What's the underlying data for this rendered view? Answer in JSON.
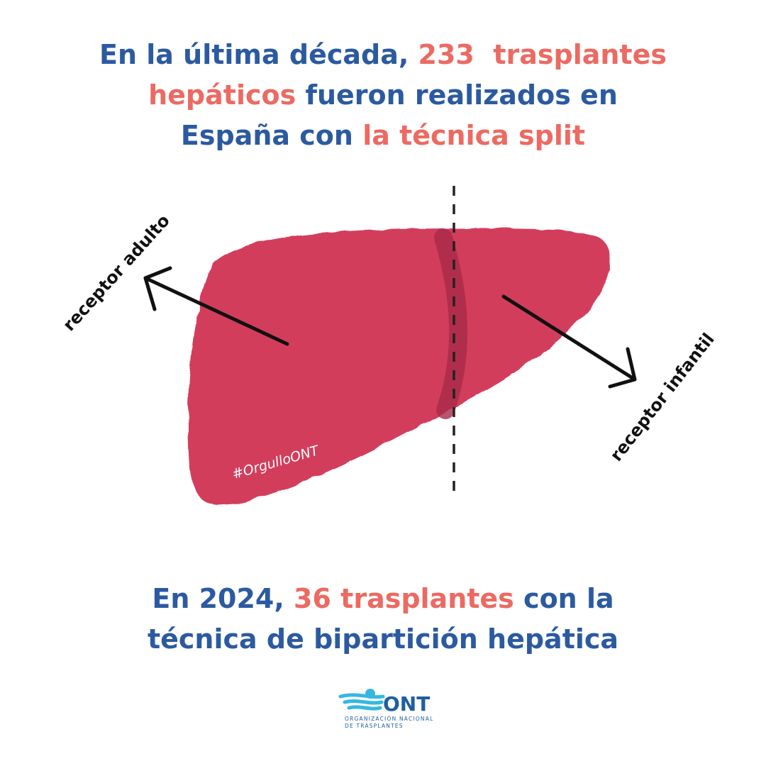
{
  "headline": {
    "lines": [
      [
        {
          "text": "En la última década, ",
          "color": "#2b5aa0"
        },
        {
          "text": "233  trasplantes",
          "color": "#ec6a62"
        }
      ],
      [
        {
          "text": "hepáticos",
          "color": "#ec6a62"
        },
        {
          "text": " fueron realizados en",
          "color": "#2b5aa0"
        }
      ],
      [
        {
          "text": "España con ",
          "color": "#2b5aa0"
        },
        {
          "text": "la técnica split",
          "color": "#ec6a62"
        }
      ]
    ]
  },
  "illustration": {
    "left_label": "receptor adulto",
    "right_label": "receptor infantil",
    "hashtag": "#OrgulloONT"
  },
  "footer": {
    "lines": [
      [
        {
          "text": "En 2024, ",
          "color": "#2b5aa0"
        },
        {
          "text": "36 trasplantes",
          "color": "#ec6a62"
        },
        {
          "text": " con la",
          "color": "#2b5aa0"
        }
      ],
      [
        {
          "text": "técnica de bipartición hepática",
          "color": "#2b5aa0"
        }
      ]
    ]
  },
  "logo": {
    "name": "ONT",
    "line1": "ORGANIZACIÓN NACIONAL",
    "line2": "DE TRASPLANTES"
  }
}
